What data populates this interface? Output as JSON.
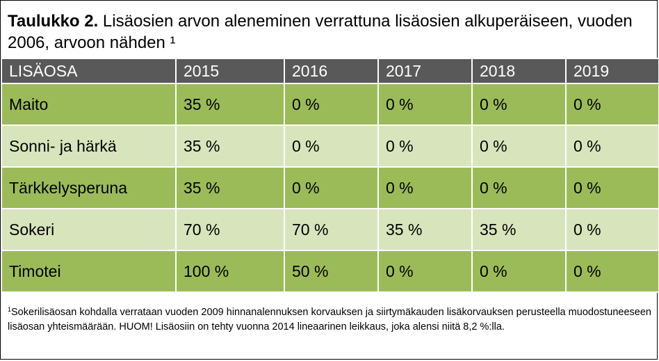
{
  "title": {
    "bold": "Taulukko 2.",
    "text": " Lisäosien arvon aleneminen verrattuna lisäosien alkuperäiseen, vuoden 2006, arvoon nähden ¹"
  },
  "table": {
    "headers": [
      "LISÄOSA",
      "2015",
      "2016",
      "2017",
      "2018",
      "2019"
    ],
    "rows": [
      [
        "Maito",
        "35 %",
        "0 %",
        "0 %",
        "0 %",
        "0 %"
      ],
      [
        "Sonni- ja härkä",
        "35 %",
        "0 %",
        "0 %",
        "0 %",
        "0 %"
      ],
      [
        "Tärkkelysperuna",
        "35 %",
        "0 %",
        "0 %",
        "0 %",
        "0 %"
      ],
      [
        "Sokeri",
        "70 %",
        "70 %",
        "35 %",
        "35 %",
        "0 %"
      ],
      [
        "Timotei",
        "100 %",
        "50 %",
        "0 %",
        "0 %",
        "0 %"
      ]
    ]
  },
  "footnote": {
    "marker": "1",
    "text": "Sokerilisäosan kohdalla verrataan vuoden 2009 hinnanalennuksen korvauksen ja siirtymäkauden lisäkorvauksen perusteella muodostuneeseen lisäosan yhteismäärään. HUOM! Lisäosiin on tehty vuonna 2014 lineaarinen leikkaus, joka alensi niitä 8,2 %:lla."
  },
  "colors": {
    "header_bg": "#595959",
    "row_dark": "#9bbb59",
    "row_light": "#d8e4bc"
  }
}
